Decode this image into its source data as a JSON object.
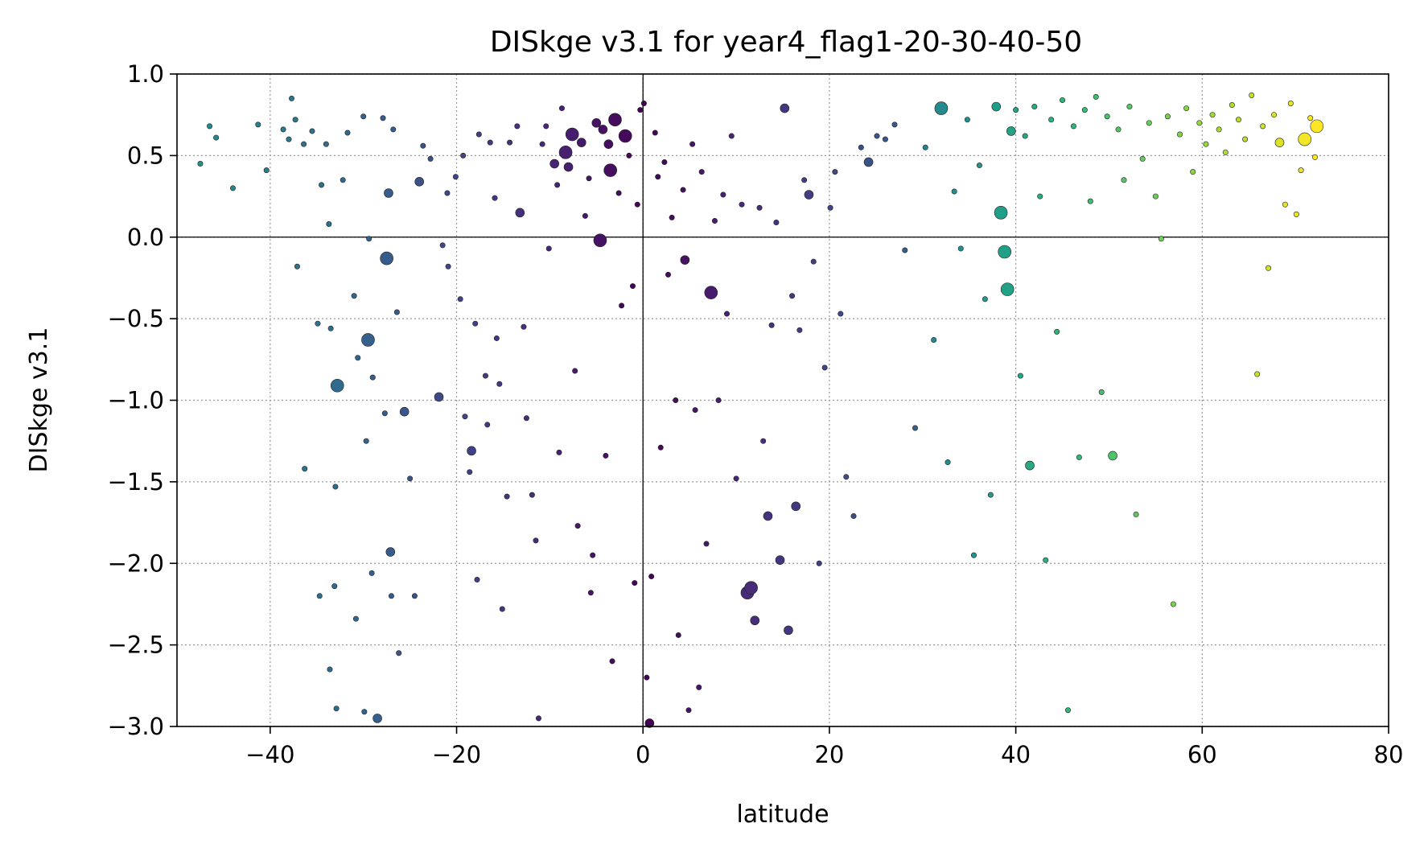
{
  "chart_data": {
    "type": "scatter",
    "title": "DISkge v3.1 for year4_flag1-20-30-40-50",
    "xlabel": "latitude",
    "ylabel": "DISkge v3.1",
    "xlim": [
      -50,
      80
    ],
    "ylim": [
      -3.0,
      1.0
    ],
    "x_ticks": [
      -40,
      -20,
      0,
      20,
      40,
      60,
      80
    ],
    "x_tick_labels": [
      "−40",
      "−20",
      "0",
      "20",
      "40",
      "60",
      "80"
    ],
    "y_ticks": [
      1.0,
      0.5,
      0.0,
      -0.5,
      -1.0,
      -1.5,
      -2.0,
      -2.5,
      -3.0
    ],
    "y_tick_labels": [
      "1.0",
      "0.5",
      "0.0",
      "−0.5",
      "−1.0",
      "−1.5",
      "−2.0",
      "−2.5",
      "−3.0"
    ],
    "grid": true,
    "grid_style": "dotted",
    "reference_lines": {
      "x": 0,
      "y": 0
    },
    "colormap": "viridis",
    "color_encodes": "latitude",
    "colors": {
      "viridis_stops": [
        "#440154",
        "#482878",
        "#3e4989",
        "#31688e",
        "#26828e",
        "#1f9e89",
        "#35b779",
        "#6ece58",
        "#b5de2b",
        "#fde725"
      ],
      "marker_edge": "#222222",
      "grid": "#999999",
      "axis": "#000000"
    },
    "points": [
      {
        "x": -47.5,
        "y": 0.45,
        "s": 1
      },
      {
        "x": -46.5,
        "y": 0.68,
        "s": 1
      },
      {
        "x": -45.8,
        "y": 0.61,
        "s": 1
      },
      {
        "x": -44.0,
        "y": 0.3,
        "s": 1
      },
      {
        "x": -41.3,
        "y": 0.69,
        "s": 1
      },
      {
        "x": -40.4,
        "y": 0.41,
        "s": 1
      },
      {
        "x": -38.6,
        "y": 0.66,
        "s": 1
      },
      {
        "x": -38.0,
        "y": 0.6,
        "s": 1
      },
      {
        "x": -37.7,
        "y": 0.85,
        "s": 1
      },
      {
        "x": -37.3,
        "y": 0.72,
        "s": 1
      },
      {
        "x": -36.4,
        "y": 0.57,
        "s": 1
      },
      {
        "x": -37.1,
        "y": -0.18,
        "s": 1
      },
      {
        "x": -36.3,
        "y": -1.42,
        "s": 1
      },
      {
        "x": -35.5,
        "y": 0.65,
        "s": 1
      },
      {
        "x": -34.9,
        "y": -0.53,
        "s": 1
      },
      {
        "x": -34.5,
        "y": 0.32,
        "s": 1
      },
      {
        "x": -34.0,
        "y": 0.57,
        "s": 1
      },
      {
        "x": -33.7,
        "y": 0.08,
        "s": 1
      },
      {
        "x": -33.5,
        "y": -0.56,
        "s": 1
      },
      {
        "x": -34.7,
        "y": -2.2,
        "s": 1
      },
      {
        "x": -33.6,
        "y": -2.65,
        "s": 1
      },
      {
        "x": -32.8,
        "y": -0.91,
        "s": 3
      },
      {
        "x": -33.0,
        "y": -1.53,
        "s": 1
      },
      {
        "x": -33.1,
        "y": -2.14,
        "s": 1
      },
      {
        "x": -32.9,
        "y": -2.89,
        "s": 1
      },
      {
        "x": -32.2,
        "y": 0.35,
        "s": 1
      },
      {
        "x": -31.7,
        "y": 0.64,
        "s": 1
      },
      {
        "x": -31.0,
        "y": -0.36,
        "s": 1
      },
      {
        "x": -30.6,
        "y": -0.74,
        "s": 1
      },
      {
        "x": -30.8,
        "y": -2.34,
        "s": 1
      },
      {
        "x": -30.0,
        "y": 0.74,
        "s": 1
      },
      {
        "x": -29.5,
        "y": -0.63,
        "s": 3
      },
      {
        "x": -29.4,
        "y": -0.01,
        "s": 1
      },
      {
        "x": -29.0,
        "y": -0.86,
        "s": 1
      },
      {
        "x": -29.7,
        "y": -1.25,
        "s": 1
      },
      {
        "x": -29.1,
        "y": -2.06,
        "s": 1
      },
      {
        "x": -29.9,
        "y": -2.91,
        "s": 1
      },
      {
        "x": -28.5,
        "y": -2.95,
        "s": 2
      },
      {
        "x": -27.9,
        "y": 0.73,
        "s": 1
      },
      {
        "x": -27.7,
        "y": -1.08,
        "s": 1
      },
      {
        "x": -27.3,
        "y": 0.27,
        "s": 2
      },
      {
        "x": -27.5,
        "y": -0.13,
        "s": 3
      },
      {
        "x": -27.1,
        "y": -1.93,
        "s": 2
      },
      {
        "x": -27.0,
        "y": -2.2,
        "s": 1
      },
      {
        "x": -26.8,
        "y": 0.66,
        "s": 1
      },
      {
        "x": -26.4,
        "y": -0.46,
        "s": 1
      },
      {
        "x": -26.2,
        "y": -2.55,
        "s": 1
      },
      {
        "x": -25.6,
        "y": -1.07,
        "s": 2
      },
      {
        "x": -25.0,
        "y": -1.48,
        "s": 1
      },
      {
        "x": -24.5,
        "y": -2.2,
        "s": 1
      },
      {
        "x": -24.0,
        "y": 0.34,
        "s": 2
      },
      {
        "x": -23.6,
        "y": 0.56,
        "s": 1
      },
      {
        "x": -22.8,
        "y": 0.48,
        "s": 1
      },
      {
        "x": -21.9,
        "y": -0.98,
        "s": 2
      },
      {
        "x": -21.5,
        "y": -0.05,
        "s": 1
      },
      {
        "x": -21.0,
        "y": 0.27,
        "s": 1
      },
      {
        "x": -20.9,
        "y": -0.18,
        "s": 1
      },
      {
        "x": -20.1,
        "y": 0.37,
        "s": 1
      },
      {
        "x": -19.6,
        "y": -0.38,
        "s": 1
      },
      {
        "x": -19.3,
        "y": 0.5,
        "s": 1
      },
      {
        "x": -19.1,
        "y": -1.1,
        "s": 1
      },
      {
        "x": -18.6,
        "y": -1.44,
        "s": 1
      },
      {
        "x": -18.4,
        "y": -1.31,
        "s": 2
      },
      {
        "x": -18.0,
        "y": -0.53,
        "s": 1
      },
      {
        "x": -17.8,
        "y": -2.1,
        "s": 1
      },
      {
        "x": -17.6,
        "y": 0.63,
        "s": 1
      },
      {
        "x": -16.9,
        "y": -0.85,
        "s": 1
      },
      {
        "x": -16.7,
        "y": -1.15,
        "s": 1
      },
      {
        "x": -16.4,
        "y": 0.58,
        "s": 1
      },
      {
        "x": -15.9,
        "y": 0.24,
        "s": 1
      },
      {
        "x": -15.7,
        "y": -0.62,
        "s": 1
      },
      {
        "x": -15.4,
        "y": -0.9,
        "s": 1
      },
      {
        "x": -15.1,
        "y": -2.28,
        "s": 1
      },
      {
        "x": -14.6,
        "y": -1.59,
        "s": 1
      },
      {
        "x": -14.3,
        "y": 0.58,
        "s": 1
      },
      {
        "x": -13.5,
        "y": 0.68,
        "s": 1
      },
      {
        "x": -13.2,
        "y": 0.15,
        "s": 2
      },
      {
        "x": -12.8,
        "y": -0.55,
        "s": 1
      },
      {
        "x": -12.5,
        "y": -1.11,
        "s": 1
      },
      {
        "x": -11.9,
        "y": -1.58,
        "s": 1
      },
      {
        "x": -11.5,
        "y": -1.86,
        "s": 1
      },
      {
        "x": -11.2,
        "y": -2.95,
        "s": 1
      },
      {
        "x": -10.8,
        "y": 0.57,
        "s": 1
      },
      {
        "x": -10.4,
        "y": 0.68,
        "s": 1
      },
      {
        "x": -10.1,
        "y": -0.07,
        "s": 1
      },
      {
        "x": -9.5,
        "y": 0.45,
        "s": 2
      },
      {
        "x": -9.2,
        "y": 0.32,
        "s": 1
      },
      {
        "x": -9.0,
        "y": -1.32,
        "s": 1
      },
      {
        "x": -8.7,
        "y": 0.79,
        "s": 1
      },
      {
        "x": -8.3,
        "y": 0.52,
        "s": 3
      },
      {
        "x": -8.0,
        "y": 0.43,
        "s": 2
      },
      {
        "x": -7.6,
        "y": 0.63,
        "s": 3
      },
      {
        "x": -7.3,
        "y": -0.82,
        "s": 1
      },
      {
        "x": -7.0,
        "y": -1.77,
        "s": 1
      },
      {
        "x": -6.6,
        "y": 0.58,
        "s": 2
      },
      {
        "x": -6.2,
        "y": 0.13,
        "s": 1
      },
      {
        "x": -5.8,
        "y": 0.36,
        "s": 1
      },
      {
        "x": -5.6,
        "y": -2.18,
        "s": 1
      },
      {
        "x": -5.4,
        "y": -1.95,
        "s": 1
      },
      {
        "x": -5.0,
        "y": 0.7,
        "s": 2
      },
      {
        "x": -4.6,
        "y": -0.02,
        "s": 3
      },
      {
        "x": -4.3,
        "y": 0.66,
        "s": 2
      },
      {
        "x": -4.0,
        "y": -1.34,
        "s": 1
      },
      {
        "x": -3.7,
        "y": 0.57,
        "s": 2
      },
      {
        "x": -3.5,
        "y": 0.41,
        "s": 3
      },
      {
        "x": -3.3,
        "y": -2.6,
        "s": 1
      },
      {
        "x": -3.0,
        "y": 0.72,
        "s": 3
      },
      {
        "x": -2.6,
        "y": 0.27,
        "s": 1
      },
      {
        "x": -2.3,
        "y": -0.42,
        "s": 1
      },
      {
        "x": -1.9,
        "y": 0.62,
        "s": 3
      },
      {
        "x": -1.5,
        "y": 0.5,
        "s": 1
      },
      {
        "x": -1.1,
        "y": -0.3,
        "s": 1
      },
      {
        "x": -0.9,
        "y": -2.12,
        "s": 1
      },
      {
        "x": -0.6,
        "y": 0.2,
        "s": 1
      },
      {
        "x": -0.3,
        "y": 0.78,
        "s": 1
      },
      {
        "x": 0.1,
        "y": 0.82,
        "s": 1
      },
      {
        "x": 0.4,
        "y": -2.7,
        "s": 1
      },
      {
        "x": 0.7,
        "y": -2.98,
        "s": 2
      },
      {
        "x": 0.9,
        "y": -2.08,
        "s": 1
      },
      {
        "x": 1.3,
        "y": 0.64,
        "s": 1
      },
      {
        "x": 1.6,
        "y": 0.37,
        "s": 1
      },
      {
        "x": 1.9,
        "y": -1.29,
        "s": 1
      },
      {
        "x": 2.3,
        "y": 0.46,
        "s": 1
      },
      {
        "x": 2.7,
        "y": -0.23,
        "s": 1
      },
      {
        "x": 3.1,
        "y": 0.12,
        "s": 1
      },
      {
        "x": 3.5,
        "y": -1.0,
        "s": 1
      },
      {
        "x": 3.8,
        "y": -2.44,
        "s": 1
      },
      {
        "x": 4.3,
        "y": 0.29,
        "s": 1
      },
      {
        "x": 4.5,
        "y": -0.14,
        "s": 2
      },
      {
        "x": 4.9,
        "y": -2.9,
        "s": 1
      },
      {
        "x": 5.3,
        "y": 0.57,
        "s": 1
      },
      {
        "x": 5.6,
        "y": -1.06,
        "s": 1
      },
      {
        "x": 6.0,
        "y": -2.76,
        "s": 1
      },
      {
        "x": 6.3,
        "y": 0.4,
        "s": 1
      },
      {
        "x": 6.8,
        "y": -1.88,
        "s": 1
      },
      {
        "x": 7.3,
        "y": -0.34,
        "s": 3
      },
      {
        "x": 7.7,
        "y": 0.1,
        "s": 1
      },
      {
        "x": 8.1,
        "y": -1.0,
        "s": 1
      },
      {
        "x": 8.6,
        "y": 0.26,
        "s": 1
      },
      {
        "x": 9.0,
        "y": -0.47,
        "s": 1
      },
      {
        "x": 9.5,
        "y": 0.62,
        "s": 1
      },
      {
        "x": 10.0,
        "y": -1.48,
        "s": 1
      },
      {
        "x": 10.6,
        "y": 0.2,
        "s": 1
      },
      {
        "x": 11.2,
        "y": -2.18,
        "s": 3
      },
      {
        "x": 11.6,
        "y": -2.15,
        "s": 3
      },
      {
        "x": 12.0,
        "y": -2.35,
        "s": 2
      },
      {
        "x": 12.5,
        "y": 0.18,
        "s": 1
      },
      {
        "x": 12.9,
        "y": -1.25,
        "s": 1
      },
      {
        "x": 13.4,
        "y": -1.71,
        "s": 2
      },
      {
        "x": 13.8,
        "y": -0.54,
        "s": 1
      },
      {
        "x": 14.3,
        "y": 0.09,
        "s": 1
      },
      {
        "x": 14.7,
        "y": -1.98,
        "s": 2
      },
      {
        "x": 15.2,
        "y": 0.79,
        "s": 2
      },
      {
        "x": 15.6,
        "y": -2.41,
        "s": 2
      },
      {
        "x": 16.0,
        "y": -0.36,
        "s": 1
      },
      {
        "x": 16.4,
        "y": -1.65,
        "s": 2
      },
      {
        "x": 16.8,
        "y": -0.57,
        "s": 1
      },
      {
        "x": 17.3,
        "y": 0.35,
        "s": 1
      },
      {
        "x": 17.8,
        "y": 0.26,
        "s": 2
      },
      {
        "x": 18.3,
        "y": -0.15,
        "s": 1
      },
      {
        "x": 18.9,
        "y": -2.0,
        "s": 1
      },
      {
        "x": 19.5,
        "y": -0.8,
        "s": 1
      },
      {
        "x": 20.1,
        "y": 0.18,
        "s": 1
      },
      {
        "x": 20.6,
        "y": 0.4,
        "s": 1
      },
      {
        "x": 21.2,
        "y": -0.47,
        "s": 1
      },
      {
        "x": 21.8,
        "y": -1.47,
        "s": 1
      },
      {
        "x": 22.6,
        "y": -1.71,
        "s": 1
      },
      {
        "x": 23.4,
        "y": 0.55,
        "s": 1
      },
      {
        "x": 24.2,
        "y": 0.46,
        "s": 2
      },
      {
        "x": 25.1,
        "y": 0.62,
        "s": 1
      },
      {
        "x": 26.0,
        "y": 0.6,
        "s": 1
      },
      {
        "x": 27.0,
        "y": 0.69,
        "s": 1
      },
      {
        "x": 28.1,
        "y": -0.08,
        "s": 1
      },
      {
        "x": 29.2,
        "y": -1.17,
        "s": 1
      },
      {
        "x": 30.3,
        "y": 0.55,
        "s": 1
      },
      {
        "x": 31.2,
        "y": -0.63,
        "s": 1
      },
      {
        "x": 32.0,
        "y": 0.79,
        "s": 3
      },
      {
        "x": 32.7,
        "y": -1.38,
        "s": 1
      },
      {
        "x": 33.4,
        "y": 0.28,
        "s": 1
      },
      {
        "x": 34.1,
        "y": -0.07,
        "s": 1
      },
      {
        "x": 34.8,
        "y": 0.72,
        "s": 1
      },
      {
        "x": 35.5,
        "y": -1.95,
        "s": 1
      },
      {
        "x": 36.1,
        "y": 0.44,
        "s": 1
      },
      {
        "x": 36.7,
        "y": -0.38,
        "s": 1
      },
      {
        "x": 37.3,
        "y": -1.58,
        "s": 1
      },
      {
        "x": 37.9,
        "y": 0.8,
        "s": 2
      },
      {
        "x": 38.4,
        "y": 0.15,
        "s": 3
      },
      {
        "x": 38.8,
        "y": -0.09,
        "s": 3
      },
      {
        "x": 39.1,
        "y": -0.32,
        "s": 3
      },
      {
        "x": 39.5,
        "y": 0.65,
        "s": 2
      },
      {
        "x": 40.0,
        "y": 0.78,
        "s": 1
      },
      {
        "x": 40.5,
        "y": -0.85,
        "s": 1
      },
      {
        "x": 41.0,
        "y": 0.62,
        "s": 1
      },
      {
        "x": 41.5,
        "y": -1.4,
        "s": 2
      },
      {
        "x": 42.0,
        "y": 0.8,
        "s": 1
      },
      {
        "x": 42.6,
        "y": 0.25,
        "s": 1
      },
      {
        "x": 43.2,
        "y": -1.98,
        "s": 1
      },
      {
        "x": 43.8,
        "y": 0.72,
        "s": 1
      },
      {
        "x": 44.4,
        "y": -0.58,
        "s": 1
      },
      {
        "x": 45.0,
        "y": 0.84,
        "s": 1
      },
      {
        "x": 45.6,
        "y": -2.9,
        "s": 1
      },
      {
        "x": 46.2,
        "y": 0.68,
        "s": 1
      },
      {
        "x": 46.8,
        "y": -1.35,
        "s": 1
      },
      {
        "x": 47.4,
        "y": 0.78,
        "s": 1
      },
      {
        "x": 48.0,
        "y": 0.22,
        "s": 1
      },
      {
        "x": 48.6,
        "y": 0.86,
        "s": 1
      },
      {
        "x": 49.2,
        "y": -0.95,
        "s": 1
      },
      {
        "x": 49.8,
        "y": 0.74,
        "s": 1
      },
      {
        "x": 50.4,
        "y": -1.34,
        "s": 2
      },
      {
        "x": 51.0,
        "y": 0.66,
        "s": 1
      },
      {
        "x": 51.6,
        "y": 0.35,
        "s": 1
      },
      {
        "x": 52.2,
        "y": 0.8,
        "s": 1
      },
      {
        "x": 52.9,
        "y": -1.7,
        "s": 1
      },
      {
        "x": 53.6,
        "y": 0.48,
        "s": 1
      },
      {
        "x": 54.3,
        "y": 0.7,
        "s": 1
      },
      {
        "x": 55.0,
        "y": 0.25,
        "s": 1
      },
      {
        "x": 55.6,
        "y": -0.01,
        "s": 1
      },
      {
        "x": 56.3,
        "y": 0.74,
        "s": 1
      },
      {
        "x": 56.9,
        "y": -2.25,
        "s": 1
      },
      {
        "x": 57.6,
        "y": 0.63,
        "s": 1
      },
      {
        "x": 58.3,
        "y": 0.79,
        "s": 1
      },
      {
        "x": 59.0,
        "y": 0.4,
        "s": 1
      },
      {
        "x": 59.7,
        "y": 0.7,
        "s": 1
      },
      {
        "x": 60.4,
        "y": 0.57,
        "s": 1
      },
      {
        "x": 61.1,
        "y": 0.75,
        "s": 1
      },
      {
        "x": 61.8,
        "y": 0.66,
        "s": 1
      },
      {
        "x": 62.5,
        "y": 0.52,
        "s": 1
      },
      {
        "x": 63.2,
        "y": 0.81,
        "s": 1
      },
      {
        "x": 63.9,
        "y": 0.72,
        "s": 1
      },
      {
        "x": 64.6,
        "y": 0.6,
        "s": 1
      },
      {
        "x": 65.3,
        "y": 0.87,
        "s": 1
      },
      {
        "x": 65.9,
        "y": -0.84,
        "s": 1
      },
      {
        "x": 66.5,
        "y": 0.68,
        "s": 1
      },
      {
        "x": 67.1,
        "y": -0.19,
        "s": 1
      },
      {
        "x": 67.7,
        "y": 0.75,
        "s": 1
      },
      {
        "x": 68.3,
        "y": 0.58,
        "s": 2
      },
      {
        "x": 68.9,
        "y": 0.2,
        "s": 1
      },
      {
        "x": 69.5,
        "y": 0.82,
        "s": 1
      },
      {
        "x": 70.1,
        "y": 0.14,
        "s": 1
      },
      {
        "x": 70.6,
        "y": 0.41,
        "s": 1
      },
      {
        "x": 71.0,
        "y": 0.6,
        "s": 3
      },
      {
        "x": 71.6,
        "y": 0.73,
        "s": 1
      },
      {
        "x": 72.1,
        "y": 0.49,
        "s": 1
      },
      {
        "x": 72.3,
        "y": 0.68,
        "s": 3
      }
    ]
  }
}
